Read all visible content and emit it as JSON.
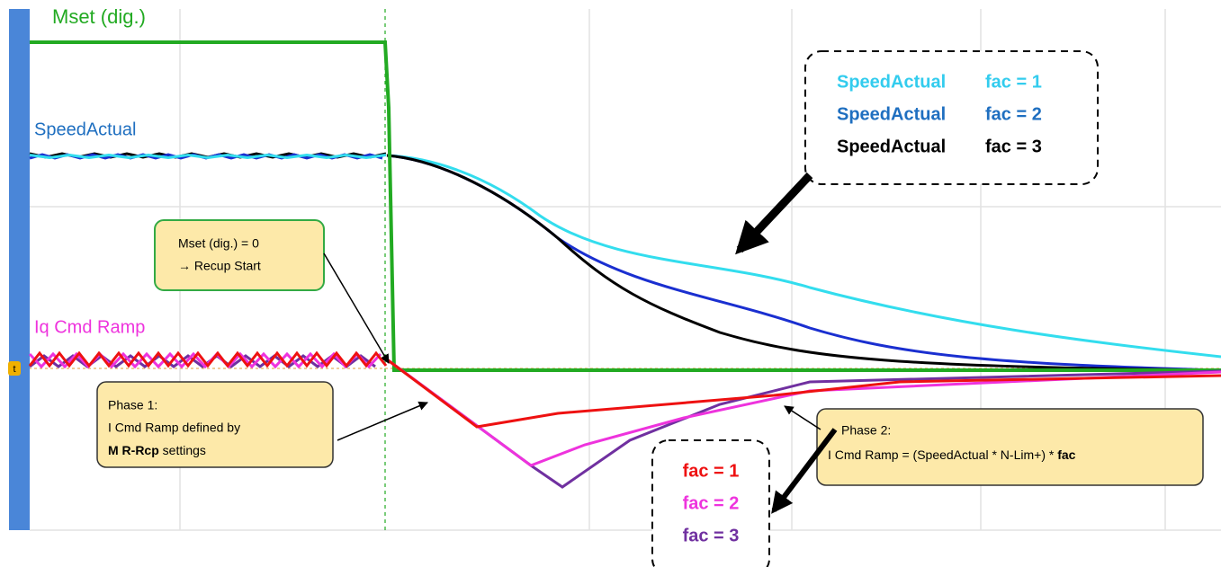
{
  "labels": {
    "mset": "Mset (dig.)",
    "speed": "SpeedActual",
    "iq": "Iq Cmd Ramp"
  },
  "marker": "t",
  "callout_start": {
    "lines": [
      "Mset (dig.) = 0",
      "→ Recup Start"
    ]
  },
  "phase1": {
    "lines": [
      "Phase 1:",
      "I Cmd Ramp defined by"
    ],
    "bold": "M R-Rcp",
    "rest": "settings"
  },
  "phase2": {
    "title": "Phase 2:",
    "text": "I Cmd Ramp = (SpeedActual * N-Lim+) *",
    "bold": "fac"
  },
  "speed_legend": [
    {
      "name": "SpeedActual",
      "fac": "fac = 1",
      "color": "#33ccee"
    },
    {
      "name": "SpeedActual",
      "fac": "fac = 2",
      "color": "#1f6fc0"
    },
    {
      "name": "SpeedActual",
      "fac": "fac = 3",
      "color": "#000000"
    }
  ],
  "iq_legend": [
    {
      "fac": "fac = 1",
      "color": "#ee1111"
    },
    {
      "fac": "fac = 2",
      "color": "#ee33dd"
    },
    {
      "fac": "fac = 3",
      "color": "#7030a0"
    }
  ]
}
